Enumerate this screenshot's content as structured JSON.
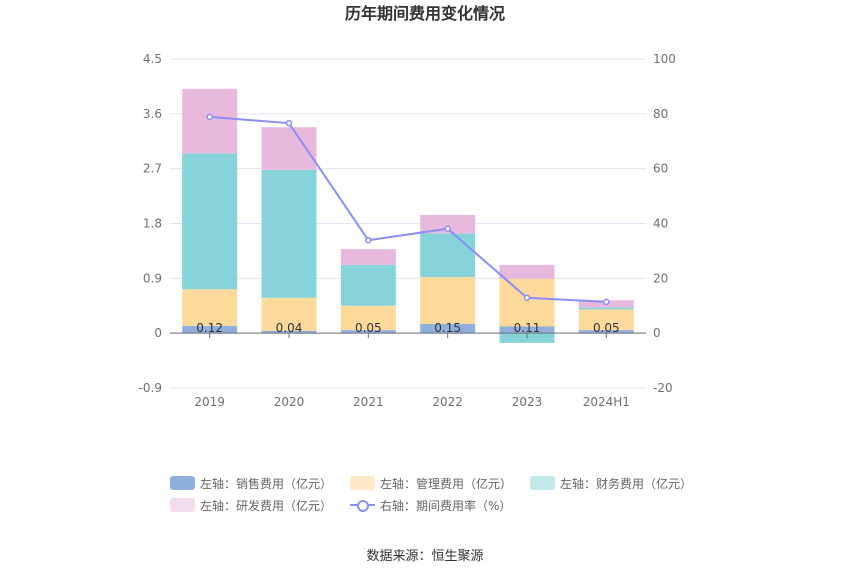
{
  "chart_data": {
    "type": "bar",
    "title": "历年期间费用变化情况",
    "categories": [
      "2019",
      "2020",
      "2021",
      "2022",
      "2023",
      "2024H1"
    ],
    "stacked": true,
    "series": [
      {
        "name": "左轴：销售费用（亿元）",
        "axis": "left",
        "color": "#8fb0dd",
        "values": [
          0.12,
          0.04,
          0.05,
          0.15,
          0.11,
          0.05
        ]
      },
      {
        "name": "左轴：管理费用（亿元）",
        "axis": "left",
        "color": "#fdd99b",
        "values": [
          0.6,
          0.54,
          0.4,
          0.77,
          0.78,
          0.34
        ]
      },
      {
        "name": "左轴：财务费用（亿元）",
        "axis": "left",
        "color": "#86d4d9",
        "values": [
          2.23,
          2.1,
          0.67,
          0.72,
          -0.16,
          0.03
        ]
      },
      {
        "name": "左轴：研发费用（亿元）",
        "axis": "left",
        "color": "#e8b9dc",
        "values": [
          1.06,
          0.7,
          0.26,
          0.3,
          0.23,
          0.12
        ]
      },
      {
        "name": "右轴：期间费用率（%）",
        "axis": "right",
        "type": "line",
        "color": "#8b8ef5",
        "values": [
          78.9,
          76.6,
          33.9,
          38.1,
          12.9,
          11.4
        ]
      }
    ],
    "data_labels": [
      "0.12",
      "0.04",
      "0.05",
      "0.15",
      "0.11",
      "0.05"
    ],
    "y_left": {
      "min": -0.9,
      "max": 4.5,
      "ticks": [
        "4.5",
        "3.6",
        "2.7",
        "1.8",
        "0.9",
        "0",
        "-0.9"
      ]
    },
    "y_right": {
      "min": -20,
      "max": 100,
      "ticks": [
        "100",
        "80",
        "60",
        "40",
        "20",
        "0",
        "-20"
      ]
    },
    "legend_position": "bottom",
    "grid": true
  },
  "source": "数据来源：恒生聚源"
}
